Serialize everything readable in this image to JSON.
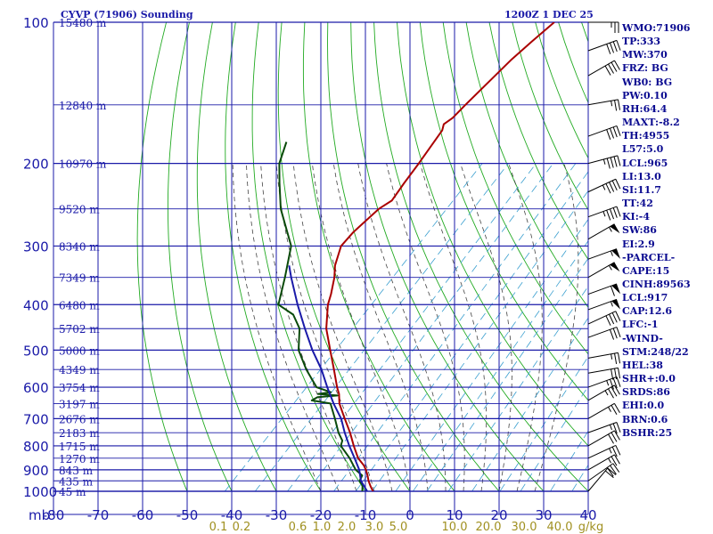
{
  "header": {
    "title": "CYVP (71906) Sounding",
    "time": "1200Z  1 DEC 25"
  },
  "colors": {
    "frame": "#1a1aa8",
    "dry_adiabat": "#22aa22",
    "moist_adiabat": "#444444",
    "mixing_ratio": "#3a9fcf",
    "temperature": "#aa0000",
    "dewpoint": "#0a4a0a",
    "parcel": "#1a1aa8",
    "wind": "#000000"
  },
  "chart_data": {
    "type": "line",
    "title": "CYVP (71906) Sounding",
    "xlabel": "",
    "ylabel": "mb",
    "x_scale": "skew-T (temperature, skewed)",
    "y_scale": "log pressure",
    "ylim": [
      1000,
      100
    ],
    "xlim_at_1000mb": [
      -80,
      40
    ],
    "grid": true,
    "pressure_ticks": [
      "100",
      "200",
      "300",
      "400",
      "500",
      "600",
      "700",
      "800",
      "900",
      "1000"
    ],
    "temp_ticks": [
      "-80",
      "-70",
      "-60",
      "-50",
      "-40",
      "-30",
      "-20",
      "-10",
      "0",
      "10",
      "20",
      "30",
      "40"
    ],
    "height_labels": [
      {
        "p": 100,
        "label": "15480 m"
      },
      {
        "p": 150,
        "label": "12840 m"
      },
      {
        "p": 200,
        "label": "10970 m"
      },
      {
        "p": 250,
        "label": "9520 m"
      },
      {
        "p": 300,
        "label": "8340 m"
      },
      {
        "p": 350,
        "label": "7349 m"
      },
      {
        "p": 400,
        "label": "6480 m"
      },
      {
        "p": 450,
        "label": "5702 m"
      },
      {
        "p": 500,
        "label": "5000 m"
      },
      {
        "p": 550,
        "label": "4349 m"
      },
      {
        "p": 600,
        "label": "3754 m"
      },
      {
        "p": 650,
        "label": "3197 m"
      },
      {
        "p": 700,
        "label": "2676 m"
      },
      {
        "p": 750,
        "label": "2183 m"
      },
      {
        "p": 800,
        "label": "1715 m"
      },
      {
        "p": 850,
        "label": "1270 m"
      },
      {
        "p": 900,
        "label": "843 m"
      },
      {
        "p": 950,
        "label": "435 m"
      },
      {
        "p": 1000,
        "label": "45 m"
      }
    ],
    "mixing_ratio_labels": [
      "0.1",
      "0.2",
      "0.6",
      "1.0",
      "2.0",
      "3.0",
      "5.0",
      "10.0",
      "20.0",
      "30.0",
      "40.0"
    ],
    "mixing_ratio_unit": "g/kg",
    "series": [
      {
        "key": "temperature",
        "points": [
          [
            1000,
            -8.3
          ],
          [
            975,
            -10
          ],
          [
            950,
            -11.6
          ],
          [
            925,
            -13
          ],
          [
            900,
            -14.6
          ],
          [
            880,
            -16.1
          ],
          [
            850,
            -18.9
          ],
          [
            800,
            -22.6
          ],
          [
            750,
            -26.3
          ],
          [
            700,
            -30.6
          ],
          [
            650,
            -35.1
          ],
          [
            620,
            -37.3
          ],
          [
            600,
            -39.2
          ],
          [
            550,
            -43.8
          ],
          [
            500,
            -48.9
          ],
          [
            450,
            -54.5
          ],
          [
            400,
            -59.4
          ],
          [
            380,
            -61
          ],
          [
            350,
            -63.9
          ],
          [
            330,
            -66.4
          ],
          [
            300,
            -69.3
          ],
          [
            280,
            -69.6
          ],
          [
            250,
            -69
          ],
          [
            240,
            -67.9
          ],
          [
            220,
            -69
          ],
          [
            200,
            -70
          ],
          [
            170,
            -72
          ],
          [
            165,
            -73
          ],
          [
            160,
            -72.4
          ],
          [
            150,
            -72.4
          ],
          [
            120,
            -72
          ],
          [
            110,
            -71.4
          ],
          [
            100,
            -70.6
          ]
        ]
      },
      {
        "key": "dewpoint",
        "points": [
          [
            1000,
            -10.7
          ],
          [
            970,
            -12
          ],
          [
            950,
            -13.6
          ],
          [
            925,
            -14.2
          ],
          [
            900,
            -16.9
          ],
          [
            850,
            -20.8
          ],
          [
            800,
            -25.5
          ],
          [
            780,
            -26.3
          ],
          [
            750,
            -28.9
          ],
          [
            700,
            -32.8
          ],
          [
            650,
            -37.1
          ],
          [
            640,
            -42
          ],
          [
            630,
            -41.4
          ],
          [
            625,
            -37.3
          ],
          [
            620,
            -42
          ],
          [
            615,
            -39.5
          ],
          [
            600,
            -43.8
          ],
          [
            550,
            -50
          ],
          [
            500,
            -56
          ],
          [
            450,
            -60.5
          ],
          [
            420,
            -65
          ],
          [
            400,
            -70.5
          ],
          [
            350,
            -75
          ],
          [
            300,
            -80.5
          ],
          [
            250,
            -91
          ],
          [
            220,
            -97
          ],
          [
            200,
            -101.3
          ],
          [
            180,
            -104.4
          ]
        ]
      },
      {
        "key": "parcel",
        "points": [
          [
            1000,
            -9.6
          ],
          [
            950,
            -13.3
          ],
          [
            900,
            -16.1
          ],
          [
            850,
            -19.7
          ],
          [
            800,
            -23.6
          ],
          [
            750,
            -27.5
          ],
          [
            700,
            -31.4
          ],
          [
            650,
            -36.4
          ],
          [
            600,
            -41.4
          ],
          [
            550,
            -46.6
          ],
          [
            500,
            -52.9
          ],
          [
            450,
            -59.3
          ],
          [
            400,
            -66.2
          ],
          [
            350,
            -73.6
          ],
          [
            330,
            -76.7
          ]
        ]
      }
    ]
  },
  "indices": [
    "WMO:71906",
    "TP:333",
    "MW:370",
    "FRZ: BG",
    "WB0: BG",
    "PW:0.10",
    "RH:64.4",
    "MAXT:-8.2",
    "TH:4955",
    "L57:5.0",
    "LCL:965",
    "LI:13.0",
    "SI:11.7",
    "TT:42",
    "KI:-4",
    "SW:86",
    "EI:2.9",
    "-PARCEL-",
    "CAPE:15",
    "CINH:89563",
    "LCL:917",
    "CAP:12.6",
    "LFC:-1",
    "-WIND-",
    "STM:248/22",
    "HEL:38",
    "SHR+:0.0",
    "SRDS:86",
    "EHI:0.0",
    "BRN:0.6",
    "BSHR:25"
  ],
  "winds": [
    {
      "p": 100,
      "dir": 270,
      "spd": 25
    },
    {
      "p": 115,
      "dir": 250,
      "spd": 40
    },
    {
      "p": 130,
      "dir": 240,
      "spd": 40
    },
    {
      "p": 150,
      "dir": 260,
      "spd": 25
    },
    {
      "p": 175,
      "dir": 250,
      "spd": 40
    },
    {
      "p": 200,
      "dir": 255,
      "spd": 45
    },
    {
      "p": 230,
      "dir": 245,
      "spd": 45
    },
    {
      "p": 260,
      "dir": 250,
      "spd": 45
    },
    {
      "p": 290,
      "dir": 240,
      "spd": 55
    },
    {
      "p": 320,
      "dir": 250,
      "spd": 55
    },
    {
      "p": 350,
      "dir": 240,
      "spd": 55
    },
    {
      "p": 380,
      "dir": 250,
      "spd": 60
    },
    {
      "p": 410,
      "dir": 250,
      "spd": 55
    },
    {
      "p": 440,
      "dir": 245,
      "spd": 40
    },
    {
      "p": 470,
      "dir": 250,
      "spd": 30
    },
    {
      "p": 520,
      "dir": 260,
      "spd": 25
    },
    {
      "p": 560,
      "dir": 260,
      "spd": 30
    },
    {
      "p": 600,
      "dir": 250,
      "spd": 35
    },
    {
      "p": 640,
      "dir": 240,
      "spd": 35
    },
    {
      "p": 700,
      "dir": 240,
      "spd": 25
    },
    {
      "p": 750,
      "dir": 250,
      "spd": 25
    },
    {
      "p": 800,
      "dir": 240,
      "spd": 30
    },
    {
      "p": 850,
      "dir": 245,
      "spd": 25
    },
    {
      "p": 900,
      "dir": 240,
      "spd": 25
    },
    {
      "p": 950,
      "dir": 235,
      "spd": 30
    },
    {
      "p": 1000,
      "dir": 220,
      "spd": 20
    }
  ]
}
